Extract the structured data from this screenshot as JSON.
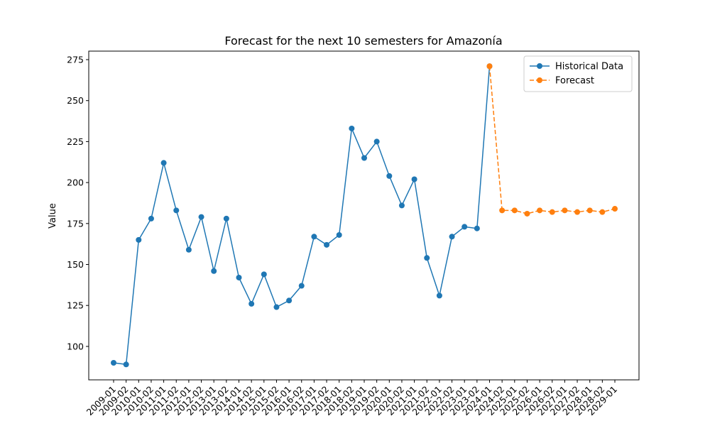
{
  "chart_data": {
    "type": "line",
    "title": "Forecast for the next 10 semesters for Amazonía",
    "y_label": "Value",
    "categories": [
      "2009-01",
      "2009-02",
      "2010-01",
      "2010-02",
      "2011-01",
      "2011-02",
      "2012-01",
      "2012-02",
      "2013-01",
      "2013-02",
      "2014-01",
      "2014-02",
      "2015-01",
      "2015-02",
      "2016-01",
      "2016-02",
      "2017-01",
      "2017-02",
      "2018-01",
      "2018-02",
      "2019-01",
      "2019-02",
      "2020-01",
      "2020-02",
      "2021-01",
      "2021-02",
      "2022-01",
      "2022-02",
      "2023-01",
      "2023-02",
      "2024-01",
      "2024-02",
      "2025-01",
      "2025-02",
      "2026-01",
      "2026-02",
      "2027-01",
      "2027-02",
      "2028-01",
      "2028-02",
      "2029-01"
    ],
    "series": [
      {
        "name": "Historical Data",
        "color": "#1f77b4",
        "linestyle": "solid",
        "values": [
          90,
          89,
          165,
          178,
          212,
          183,
          159,
          179,
          146,
          178,
          142,
          126,
          144,
          124,
          128,
          137,
          167,
          162,
          168,
          233,
          215,
          225,
          204,
          186,
          202,
          154,
          131,
          167,
          173,
          172,
          271,
          null,
          null,
          null,
          null,
          null,
          null,
          null,
          null,
          null,
          null
        ]
      },
      {
        "name": "Forecast",
        "color": "#ff7f0e",
        "linestyle": "dashed",
        "values": [
          null,
          null,
          null,
          null,
          null,
          null,
          null,
          null,
          null,
          null,
          null,
          null,
          null,
          null,
          null,
          null,
          null,
          null,
          null,
          null,
          null,
          null,
          null,
          null,
          null,
          null,
          null,
          null,
          null,
          null,
          271,
          183,
          183,
          181,
          183,
          182,
          183,
          182,
          183,
          182,
          184
        ]
      }
    ],
    "ylim": [
      79.6,
      280.2
    ],
    "yticks": [
      100,
      125,
      150,
      175,
      200,
      225,
      250,
      275
    ],
    "legend": "upper right",
    "grid": false
  }
}
